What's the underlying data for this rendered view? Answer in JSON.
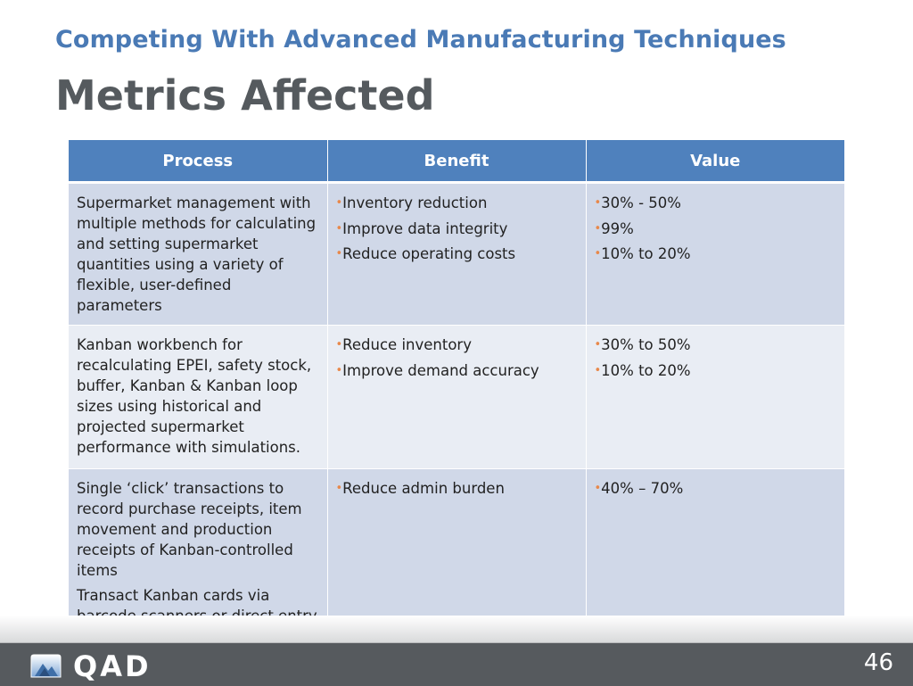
{
  "slide": {
    "subtitle": "Competing With Advanced Manufacturing Techniques",
    "title": "Metrics Affected",
    "page_number": "46",
    "brand": "QAD"
  },
  "colors": {
    "subtitle": "#4a7ab5",
    "title": "#555a5e",
    "header_fill": "#4f81bd",
    "row_fill_dark": "#d0d8e8",
    "row_fill_light": "#e9edf4",
    "bullet": "#e8884a",
    "footer": "#565a5e"
  },
  "table": {
    "headers": [
      "Process",
      "Benefit",
      "Value"
    ],
    "rows": [
      {
        "process": [
          "Supermarket management with multiple methods for calculating and setting supermarket quantities using a variety of flexible, user-defined parameters"
        ],
        "benefits": [
          "Inventory reduction",
          "Improve data integrity",
          "Reduce operating costs"
        ],
        "values": [
          "30% - 50%",
          "99%",
          "10% to 20%"
        ]
      },
      {
        "process": [
          "Kanban workbench for recalculating EPEI, safety stock, buffer, Kanban & Kanban loop sizes using historical and projected supermarket performance with simulations."
        ],
        "benefits": [
          "Reduce inventory",
          "Improve demand accuracy"
        ],
        "values": [
          "30% to 50%",
          "10% to 20%"
        ]
      },
      {
        "process": [
          "Single ‘click’ transactions to record purchase receipts, item movement and production receipts of Kanban-controlled items",
          "Transact Kanban cards via barcode scanners or direct entry"
        ],
        "benefits": [
          "Reduce admin burden"
        ],
        "values": [
          "40% – 70%"
        ]
      }
    ]
  }
}
